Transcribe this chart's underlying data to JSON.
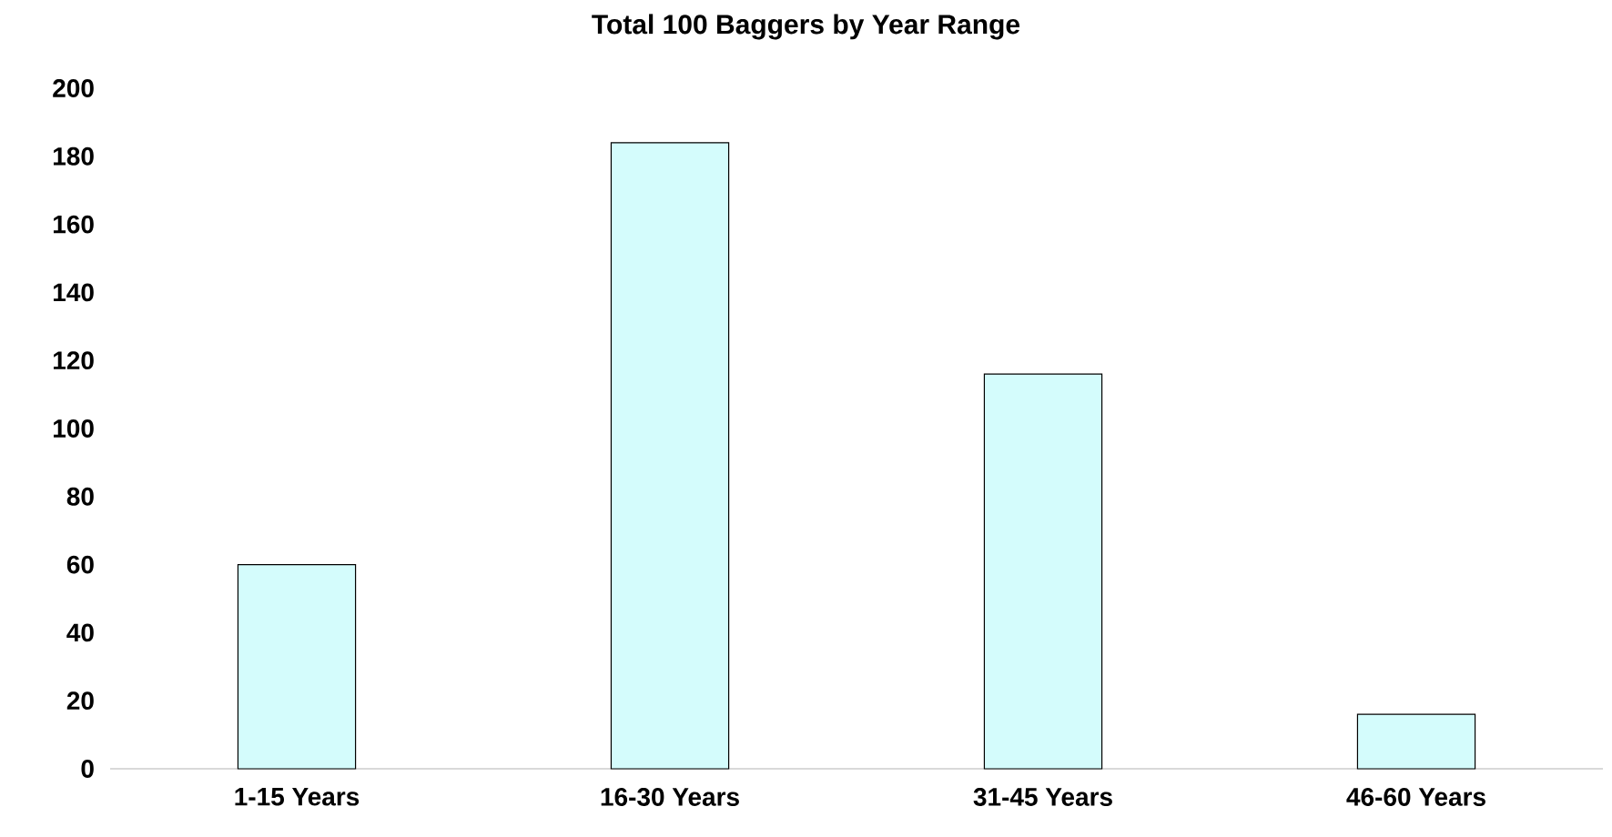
{
  "chart_data": {
    "type": "bar",
    "title": "Total 100 Baggers by Year Range",
    "categories": [
      "1-15 Years",
      "16-30 Years",
      "31-45 Years",
      "46-60 Years"
    ],
    "values": [
      60,
      184,
      116,
      16
    ],
    "color": "#d4fcfc",
    "ylim": [
      0,
      200
    ],
    "yticks": [
      0,
      20,
      40,
      60,
      80,
      100,
      120,
      140,
      160,
      180,
      200
    ]
  }
}
